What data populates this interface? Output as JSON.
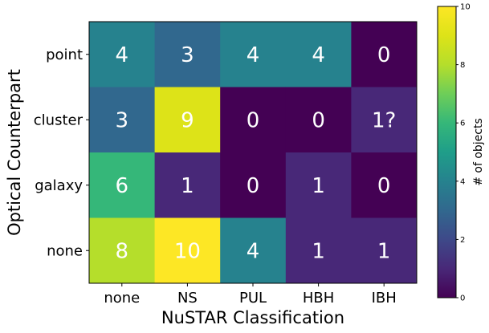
{
  "chart_data": {
    "type": "heatmap",
    "title": "",
    "xlabel": "NuSTAR Classification",
    "ylabel": "Optical Counterpart",
    "x_categories": [
      "none",
      "NS",
      "PUL",
      "HBH",
      "IBH"
    ],
    "y_categories": [
      "point",
      "cluster",
      "galaxy",
      "none"
    ],
    "values": [
      [
        4,
        3,
        4,
        4,
        0
      ],
      [
        3,
        9,
        0,
        0,
        1
      ],
      [
        6,
        1,
        0,
        1,
        0
      ],
      [
        8,
        10,
        4,
        1,
        1
      ]
    ],
    "cell_labels": [
      [
        "4",
        "3",
        "4",
        "4",
        "0"
      ],
      [
        "3",
        "9",
        "0",
        "0",
        "1?"
      ],
      [
        "6",
        "1",
        "0",
        "1",
        "0"
      ],
      [
        "8",
        "10",
        "4",
        "1",
        "1"
      ]
    ],
    "colormap": "viridis",
    "colorbar": {
      "label": "# of objects",
      "range": [
        0,
        10
      ],
      "ticks": [
        "0",
        "2",
        "4",
        "6",
        "8",
        "10"
      ]
    },
    "grid": false
  }
}
